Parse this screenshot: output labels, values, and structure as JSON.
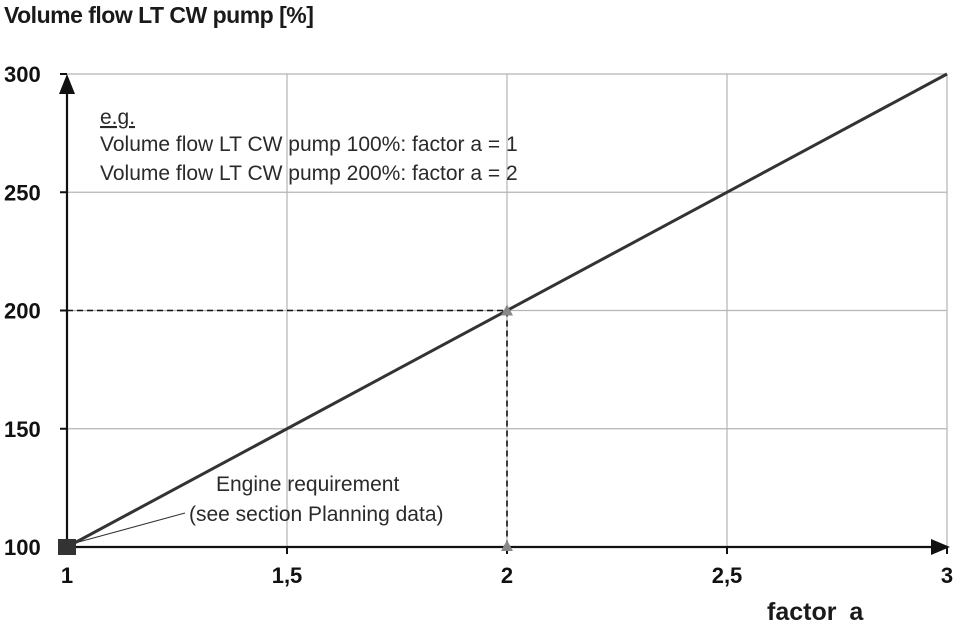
{
  "chart_data": {
    "type": "line",
    "ylabel": "Volume flow LT CW pump [%]",
    "xlabel": "factor  a",
    "x_ticks": [
      "1",
      "1,5",
      "2",
      "2,5",
      "3"
    ],
    "x_tick_values": [
      1,
      1.5,
      2,
      2.5,
      3
    ],
    "y_ticks": [
      "100",
      "150",
      "200",
      "250",
      "300"
    ],
    "y_tick_values": [
      100,
      150,
      200,
      250,
      300
    ],
    "xlim": [
      1,
      3
    ],
    "ylim": [
      100,
      300
    ],
    "grid": true,
    "series": [
      {
        "x": [
          1,
          3
        ],
        "y": [
          100,
          300
        ],
        "color": "#333333"
      }
    ],
    "example_point": {
      "x": 2,
      "y": 200
    },
    "engine_point": {
      "x": 1,
      "y": 100
    },
    "annotations": {
      "eg_heading": "e.g.",
      "eg_line1": "Volume flow LT CW  pump 100%: factor  a = 1",
      "eg_line2": "Volume flow LT CW  pump 200%: factor  a = 2",
      "engine_line1": "Engine requirement",
      "engine_line2": "(see section Planning data)"
    }
  }
}
